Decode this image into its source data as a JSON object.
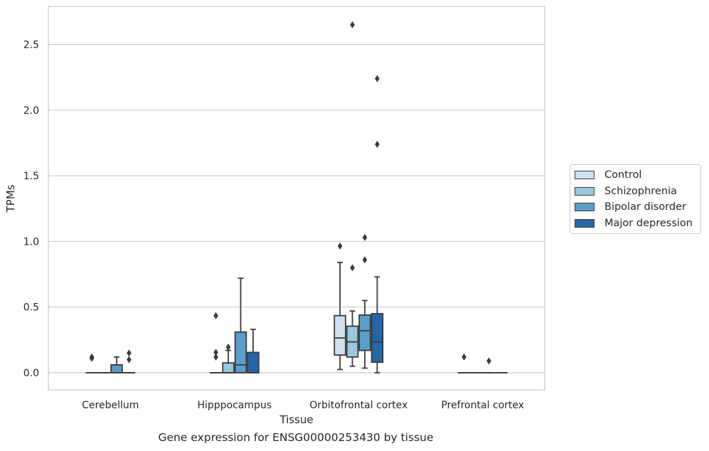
{
  "chart_data": {
    "type": "box",
    "title": "",
    "caption": "Gene expression for ENSG00000253430 by tissue",
    "xlabel": "Tissue",
    "ylabel": "TPMs",
    "ylim": [
      -0.13,
      2.79
    ],
    "yticks": [
      0.0,
      0.5,
      1.0,
      1.5,
      2.0,
      2.5
    ],
    "ytick_labels": [
      "0.0",
      "0.5",
      "1.0",
      "1.5",
      "2.0",
      "2.5"
    ],
    "grid": true,
    "legend_position": "right, outside plot",
    "categories": [
      "Cerebellum",
      "Hipppocampus",
      "Orbitofrontal cortex",
      "Prefrontal cortex"
    ],
    "series": [
      {
        "name": "Control",
        "color": "#cfe0f1",
        "boxes": [
          {
            "q1": 0,
            "median": 0,
            "q3": 0,
            "whislo": 0,
            "whishi": 0,
            "fliers": [
              0.11,
              0.12
            ]
          },
          {
            "q1": 0,
            "median": 0,
            "q3": 0,
            "whislo": 0,
            "whishi": 0,
            "fliers": [
              0.12,
              0.155,
              0.435
            ]
          },
          {
            "q1": 0.135,
            "median": 0.265,
            "q3": 0.435,
            "whislo": 0.025,
            "whishi": 0.84,
            "fliers": [
              0.965
            ]
          },
          {
            "q1": 0,
            "median": 0,
            "q3": 0,
            "whislo": 0,
            "whishi": 0,
            "fliers": [
              0.12
            ]
          }
        ]
      },
      {
        "name": "Schizophrenia",
        "color": "#9ac8e0",
        "boxes": [
          {
            "q1": 0,
            "median": 0,
            "q3": 0,
            "whislo": 0,
            "whishi": 0,
            "fliers": []
          },
          {
            "q1": 0,
            "median": 0,
            "q3": 0.075,
            "whislo": 0,
            "whishi": 0.17,
            "fliers": [
              0.195
            ]
          },
          {
            "q1": 0.12,
            "median": 0.235,
            "q3": 0.355,
            "whislo": 0.05,
            "whishi": 0.47,
            "fliers": [
              0.8,
              2.65
            ]
          },
          {
            "q1": 0,
            "median": 0,
            "q3": 0,
            "whislo": 0,
            "whishi": 0,
            "fliers": []
          }
        ]
      },
      {
        "name": "Bipolar disorder",
        "color": "#5a9ec9",
        "boxes": [
          {
            "q1": 0,
            "median": 0,
            "q3": 0.06,
            "whislo": 0,
            "whishi": 0.12,
            "fliers": []
          },
          {
            "q1": 0,
            "median": 0.06,
            "q3": 0.31,
            "whislo": 0,
            "whishi": 0.72,
            "fliers": []
          },
          {
            "q1": 0.17,
            "median": 0.32,
            "q3": 0.44,
            "whislo": 0.035,
            "whishi": 0.55,
            "fliers": [
              0.86,
              1.03
            ]
          },
          {
            "q1": 0,
            "median": 0,
            "q3": 0,
            "whislo": 0,
            "whishi": 0,
            "fliers": [
              0.09
            ]
          }
        ]
      },
      {
        "name": "Major depression",
        "color": "#2466a8",
        "boxes": [
          {
            "q1": 0,
            "median": 0,
            "q3": 0,
            "whislo": 0,
            "whishi": 0,
            "fliers": [
              0.1,
              0.15
            ]
          },
          {
            "q1": 0,
            "median": 0,
            "q3": 0.155,
            "whislo": 0,
            "whishi": 0.33,
            "fliers": []
          },
          {
            "q1": 0.08,
            "median": 0.235,
            "q3": 0.45,
            "whislo": 0,
            "whishi": 0.73,
            "fliers": [
              1.74,
              2.24
            ]
          },
          {
            "q1": 0,
            "median": 0,
            "q3": 0,
            "whislo": 0,
            "whishi": 0,
            "fliers": []
          }
        ]
      }
    ]
  }
}
